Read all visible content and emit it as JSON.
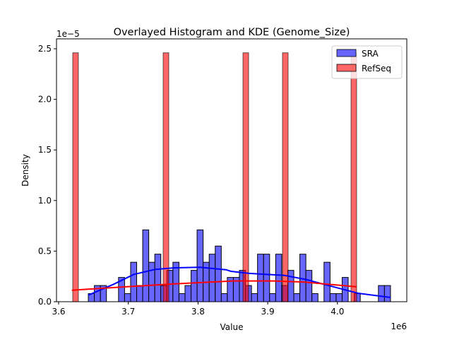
{
  "chart_data": {
    "type": "bar",
    "title": "Overlayed Histogram and KDE (Genome_Size)",
    "xlabel": "Value",
    "ylabel": "Density",
    "x_offset_label": "1e6",
    "y_offset_label": "1e−5",
    "xlim": [
      3.6,
      4.098
    ],
    "ylim": [
      0,
      2.6
    ],
    "x_ticks": [
      3.6,
      3.7,
      3.8,
      3.9,
      4.0
    ],
    "x_tick_labels": [
      "3.6",
      "3.7",
      "3.8",
      "3.9",
      "4.0"
    ],
    "y_ticks": [
      0,
      0.5,
      1.0,
      1.5,
      2.0,
      2.5
    ],
    "y_tick_labels": [
      "0.0",
      "0.5",
      "1.0",
      "1.5",
      "2.0",
      "2.5"
    ],
    "grid": false,
    "legend_position": "top-right",
    "series": [
      {
        "name": "SRA",
        "color": "#0000ff",
        "fill": "#6666ff",
        "bin_start": 3.6426,
        "bin_width": 0.00867,
        "density": [
          0.08,
          0.16,
          0.16,
          0,
          0,
          0.24,
          0.08,
          0.39,
          0.16,
          0.71,
          0.39,
          0.47,
          0.16,
          0.31,
          0.39,
          0.08,
          0.16,
          0.31,
          0.71,
          0.39,
          0.47,
          0.55,
          0.08,
          0.24,
          0.24,
          0.31,
          0.16,
          0.08,
          0.47,
          0.47,
          0.08,
          0.47,
          0.16,
          0.31,
          0.08,
          0.47,
          0.31,
          0.08,
          0,
          0.39,
          0.08,
          0.08,
          0.24,
          0,
          0.08,
          0,
          0,
          0,
          0.16,
          0.16
        ],
        "kde": [
          [
            3.6426,
            0.065
          ],
          [
            3.678,
            0.17
          ],
          [
            3.708,
            0.27
          ],
          [
            3.7388,
            0.32
          ],
          [
            3.7662,
            0.335
          ],
          [
            3.8027,
            0.34
          ],
          [
            3.8473,
            0.3
          ],
          [
            3.8401,
            0.316
          ],
          [
            3.8736,
            0.28
          ],
          [
            3.9243,
            0.26
          ],
          [
            3.9547,
            0.22
          ],
          [
            3.982,
            0.17
          ],
          [
            4.0094,
            0.12
          ],
          [
            4.0297,
            0.084
          ],
          [
            4.0763,
            0.042
          ]
        ]
      },
      {
        "name": "RefSeq",
        "color": "#ff0000",
        "fill": "#ff6666",
        "bar_width": 0.0081,
        "bars": [
          [
            3.6243,
            2.46
          ],
          [
            3.754,
            2.46
          ],
          [
            3.8685,
            2.46
          ],
          [
            3.9252,
            2.46
          ],
          [
            4.0235,
            2.46
          ]
        ],
        "kde": [
          [
            3.6189,
            0.114
          ],
          [
            3.6983,
            0.149
          ],
          [
            3.7662,
            0.177
          ],
          [
            3.8503,
            0.205
          ],
          [
            3.8401,
            0.202
          ],
          [
            3.9079,
            0.205
          ],
          [
            3.9515,
            0.195
          ],
          [
            4.0275,
            0.147
          ]
        ]
      }
    ]
  }
}
